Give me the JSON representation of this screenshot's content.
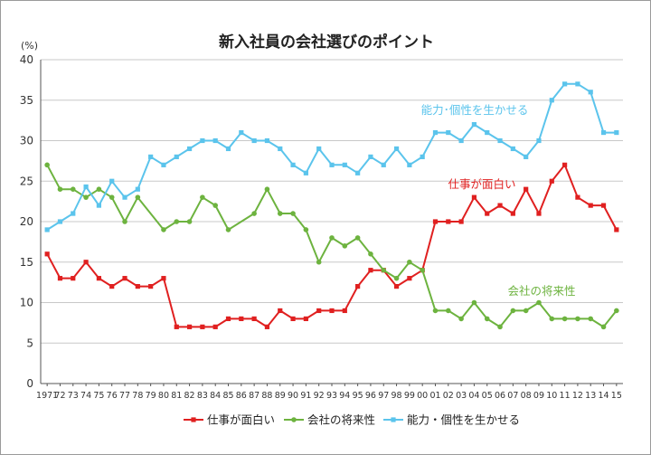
{
  "chart_data": {
    "type": "line",
    "title": "新入社員の会社選びのポイント",
    "ylabel": "(%)",
    "xlabel": "",
    "ylim": [
      0,
      40
    ],
    "yticks": [
      0,
      5,
      10,
      15,
      20,
      25,
      30,
      35,
      40
    ],
    "grid": true,
    "legend_position": "bottom",
    "categories": [
      "1971",
      "72",
      "73",
      "74",
      "75",
      "76",
      "77",
      "78",
      "79",
      "80",
      "81",
      "82",
      "83",
      "84",
      "85",
      "86",
      "87",
      "88",
      "89",
      "90",
      "91",
      "92",
      "93",
      "94",
      "95",
      "96",
      "97",
      "98",
      "99",
      "00",
      "01",
      "02",
      "03",
      "04",
      "05",
      "06",
      "07",
      "08",
      "09",
      "10",
      "11",
      "12",
      "13",
      "14",
      "15"
    ],
    "series": [
      {
        "name": "仕事が面白い",
        "color": "#e02020",
        "label": "仕事が面白い",
        "values": [
          16,
          13,
          13,
          15,
          13,
          12,
          13,
          12,
          12,
          13,
          7,
          7,
          7,
          7,
          8,
          8,
          8,
          7,
          9,
          8,
          8,
          9,
          9,
          9,
          12,
          14,
          14,
          12,
          13,
          14,
          20,
          20,
          20,
          23,
          21,
          22,
          21,
          24,
          21,
          25,
          27,
          23,
          22,
          22,
          19
        ]
      },
      {
        "name": "会社の将来性",
        "color": "#6db33f",
        "label": "会社の将来性",
        "values": [
          27,
          24,
          24,
          23,
          24,
          23,
          20,
          23,
          null,
          19,
          20,
          20,
          23,
          22,
          19,
          null,
          21,
          24,
          21,
          21,
          19,
          15,
          18,
          17,
          18,
          16,
          14,
          13,
          15,
          14,
          9,
          9,
          8,
          10,
          8,
          7,
          9,
          9,
          10,
          8,
          8,
          8,
          8,
          7,
          9
        ]
      },
      {
        "name": "能力・個性を生かせる",
        "color": "#5bc4ec",
        "label": "能力･個性を生かせる",
        "values": [
          19,
          20,
          21,
          24.3,
          22,
          25,
          23,
          24,
          28,
          27,
          28,
          29,
          30,
          30,
          29,
          31,
          30,
          30,
          29,
          27,
          26,
          29,
          27,
          27,
          26,
          28,
          27,
          29,
          27,
          28,
          31,
          31,
          30,
          32,
          31,
          30,
          29,
          28,
          30,
          35,
          37,
          37,
          36,
          31,
          31
        ]
      }
    ]
  }
}
